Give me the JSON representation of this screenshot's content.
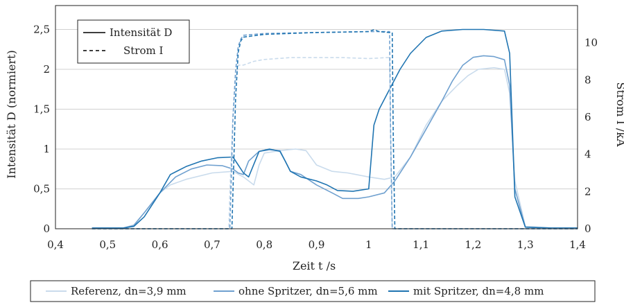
{
  "chart_data": {
    "type": "line",
    "xlabel": "Zeit t /s",
    "ylabel_left": "Intensität D (normiert)",
    "ylabel_right": "Strom I /kA",
    "xlim": [
      0.4,
      1.4
    ],
    "ylim_left": [
      0,
      2.8
    ],
    "ylim_right": [
      0,
      12
    ],
    "xticks": [
      "0,4",
      "0,5",
      "0,6",
      "0,7",
      "0,8",
      "0,9",
      "1",
      "1,1",
      "1,2",
      "1,3",
      "1,4"
    ],
    "yticks_left": [
      "0",
      "0,5",
      "1",
      "1,5",
      "2",
      "2,5"
    ],
    "yticks_right": [
      "0",
      "2",
      "4",
      "6",
      "8",
      "10"
    ],
    "grid": "horizontal",
    "style_legend": {
      "placement": "top-left",
      "solid": "Intensität D",
      "dashed": "Strom I"
    },
    "series_legend": {
      "placement": "bottom",
      "items": [
        "Referenz, dn=3,9 mm",
        "ohne Spritzer, dn=5,6 mm",
        "mit Spritzer, dn=4,8 mm"
      ]
    },
    "colors": [
      "#c9dbec",
      "#6fa0cf",
      "#1f74b1"
    ],
    "series": [
      {
        "name": "Referenz, dn=3,9 mm",
        "axis": "left",
        "line": "solid",
        "color": "#c9dbec",
        "x": [
          0.47,
          0.53,
          0.55,
          0.57,
          0.6,
          0.62,
          0.65,
          0.7,
          0.74,
          0.76,
          0.77,
          0.78,
          0.79,
          0.8,
          0.83,
          0.86,
          0.88,
          0.9,
          0.93,
          0.96,
          1.0,
          1.03,
          1.05,
          1.08,
          1.11,
          1.14,
          1.17,
          1.19,
          1.21,
          1.24,
          1.26,
          1.27,
          1.28,
          1.3,
          1.35,
          1.4
        ],
        "y": [
          0.01,
          0.01,
          0.05,
          0.2,
          0.45,
          0.55,
          0.62,
          0.7,
          0.72,
          0.65,
          0.6,
          0.55,
          0.8,
          0.95,
          0.98,
          1.0,
          0.98,
          0.8,
          0.72,
          0.7,
          0.65,
          0.62,
          0.65,
          0.9,
          1.3,
          1.6,
          1.8,
          1.92,
          2.0,
          2.02,
          2.0,
          1.7,
          0.6,
          0.03,
          0.01,
          0.01
        ]
      },
      {
        "name": "ohne Spritzer, dn=5,6 mm",
        "axis": "left",
        "line": "solid",
        "color": "#6fa0cf",
        "x": [
          0.47,
          0.53,
          0.55,
          0.57,
          0.6,
          0.63,
          0.66,
          0.69,
          0.72,
          0.74,
          0.75,
          0.76,
          0.77,
          0.79,
          0.81,
          0.83,
          0.84,
          0.85,
          0.87,
          0.9,
          0.93,
          0.95,
          0.98,
          1.0,
          1.03,
          1.05,
          1.08,
          1.11,
          1.14,
          1.16,
          1.18,
          1.2,
          1.22,
          1.24,
          1.26,
          1.27,
          1.28,
          1.3,
          1.35,
          1.4
        ],
        "y": [
          0.01,
          0.01,
          0.04,
          0.2,
          0.45,
          0.65,
          0.75,
          0.8,
          0.79,
          0.75,
          0.7,
          0.68,
          0.85,
          0.97,
          0.99,
          0.98,
          0.85,
          0.72,
          0.68,
          0.55,
          0.45,
          0.38,
          0.38,
          0.4,
          0.45,
          0.6,
          0.9,
          1.25,
          1.6,
          1.85,
          2.05,
          2.15,
          2.17,
          2.16,
          2.12,
          1.8,
          0.5,
          0.02,
          0.01,
          0.01
        ]
      },
      {
        "name": "mit Spritzer, dn=4,8 mm",
        "axis": "left",
        "line": "solid",
        "color": "#1f74b1",
        "x": [
          0.47,
          0.53,
          0.55,
          0.57,
          0.6,
          0.62,
          0.65,
          0.68,
          0.71,
          0.74,
          0.75,
          0.76,
          0.77,
          0.79,
          0.81,
          0.83,
          0.84,
          0.85,
          0.87,
          0.9,
          0.92,
          0.94,
          0.97,
          1.0,
          1.01,
          1.02,
          1.04,
          1.06,
          1.08,
          1.11,
          1.14,
          1.18,
          1.22,
          1.26,
          1.27,
          1.28,
          1.3,
          1.35,
          1.4
        ],
        "y": [
          0.01,
          0.01,
          0.03,
          0.15,
          0.45,
          0.68,
          0.78,
          0.85,
          0.89,
          0.9,
          0.8,
          0.7,
          0.65,
          0.97,
          1.0,
          0.97,
          0.85,
          0.72,
          0.65,
          0.6,
          0.55,
          0.48,
          0.47,
          0.5,
          1.3,
          1.5,
          1.75,
          2.0,
          2.2,
          2.4,
          2.48,
          2.5,
          2.5,
          2.48,
          2.2,
          0.4,
          0.02,
          0.01,
          0.01
        ]
      },
      {
        "name": "Strom I, Referenz",
        "axis": "right",
        "line": "dashed",
        "color": "#c9dbec",
        "x": [
          0.47,
          0.732,
          0.734,
          0.74,
          0.745,
          0.75,
          0.76,
          0.78,
          0.8,
          0.85,
          0.9,
          0.95,
          1.0,
          1.035,
          1.04,
          1.042,
          1.045,
          1.4
        ],
        "y": [
          0,
          0,
          2,
          6,
          8,
          8.8,
          8.8,
          9.0,
          9.1,
          9.2,
          9.2,
          9.2,
          9.15,
          9.2,
          9.2,
          5,
          0,
          0
        ]
      },
      {
        "name": "Strom I, ohne Spritzer",
        "axis": "right",
        "line": "dashed",
        "color": "#6fa0cf",
        "x": [
          0.47,
          0.734,
          0.736,
          0.74,
          0.745,
          0.75,
          0.755,
          0.76,
          0.8,
          0.9,
          1.0,
          1.03,
          1.04,
          1.042,
          1.045,
          1.4
        ],
        "y": [
          0,
          0,
          2,
          6,
          8.5,
          9.8,
          10.2,
          10.4,
          10.5,
          10.55,
          10.6,
          10.6,
          10.6,
          5,
          0,
          0
        ]
      },
      {
        "name": "Strom I, mit Spritzer",
        "axis": "right",
        "line": "dashed",
        "color": "#1f74b1",
        "x": [
          0.47,
          0.738,
          0.74,
          0.745,
          0.75,
          0.755,
          0.76,
          0.8,
          0.9,
          1.0,
          1.01,
          1.02,
          1.04,
          1.045,
          1.047,
          1.05,
          1.4
        ],
        "y": [
          0,
          0,
          2,
          7,
          9.5,
          10.1,
          10.3,
          10.45,
          10.55,
          10.6,
          10.7,
          10.6,
          10.55,
          10.55,
          5,
          0,
          0
        ]
      }
    ]
  }
}
